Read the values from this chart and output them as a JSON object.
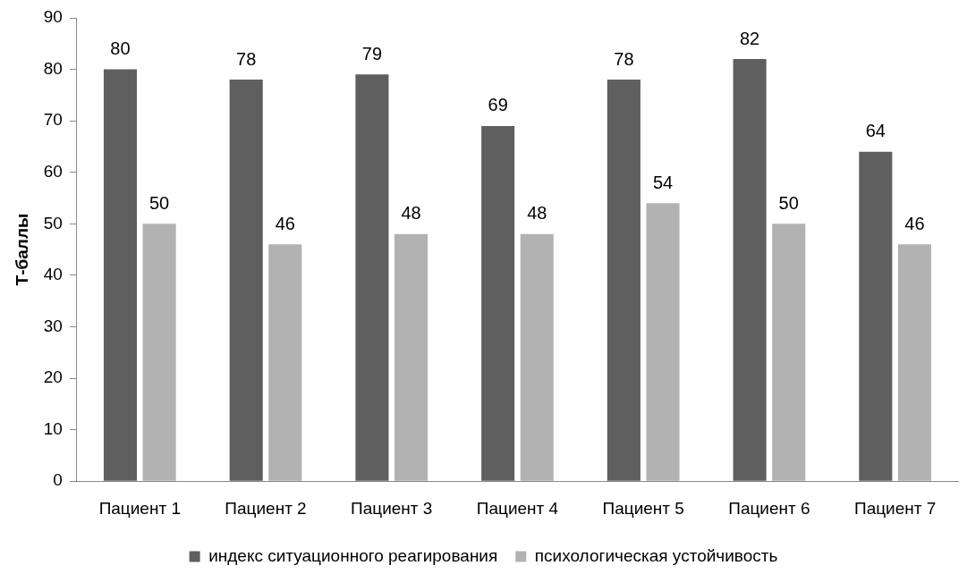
{
  "chart_data": {
    "type": "bar",
    "ylabel": "Т-баллы",
    "categories": [
      "Пациент 1",
      "Пациент 2",
      "Пациент 3",
      "Пациент 4",
      "Пациент 5",
      "Пациент 6",
      "Пациент 7"
    ],
    "series": [
      {
        "name": "индекс ситуационного реагирования",
        "color": "#5f5f5f",
        "values": [
          80,
          78,
          79,
          69,
          78,
          82,
          64
        ]
      },
      {
        "name": "психологическая устойчивость",
        "color": "#b2b2b2",
        "values": [
          50,
          46,
          48,
          48,
          54,
          50,
          46
        ]
      }
    ],
    "ylim": [
      0,
      90
    ],
    "yticks": [
      0,
      10,
      20,
      30,
      40,
      50,
      60,
      70,
      80,
      90
    ],
    "grid": false,
    "legend": "bottom",
    "data_labels": true
  }
}
